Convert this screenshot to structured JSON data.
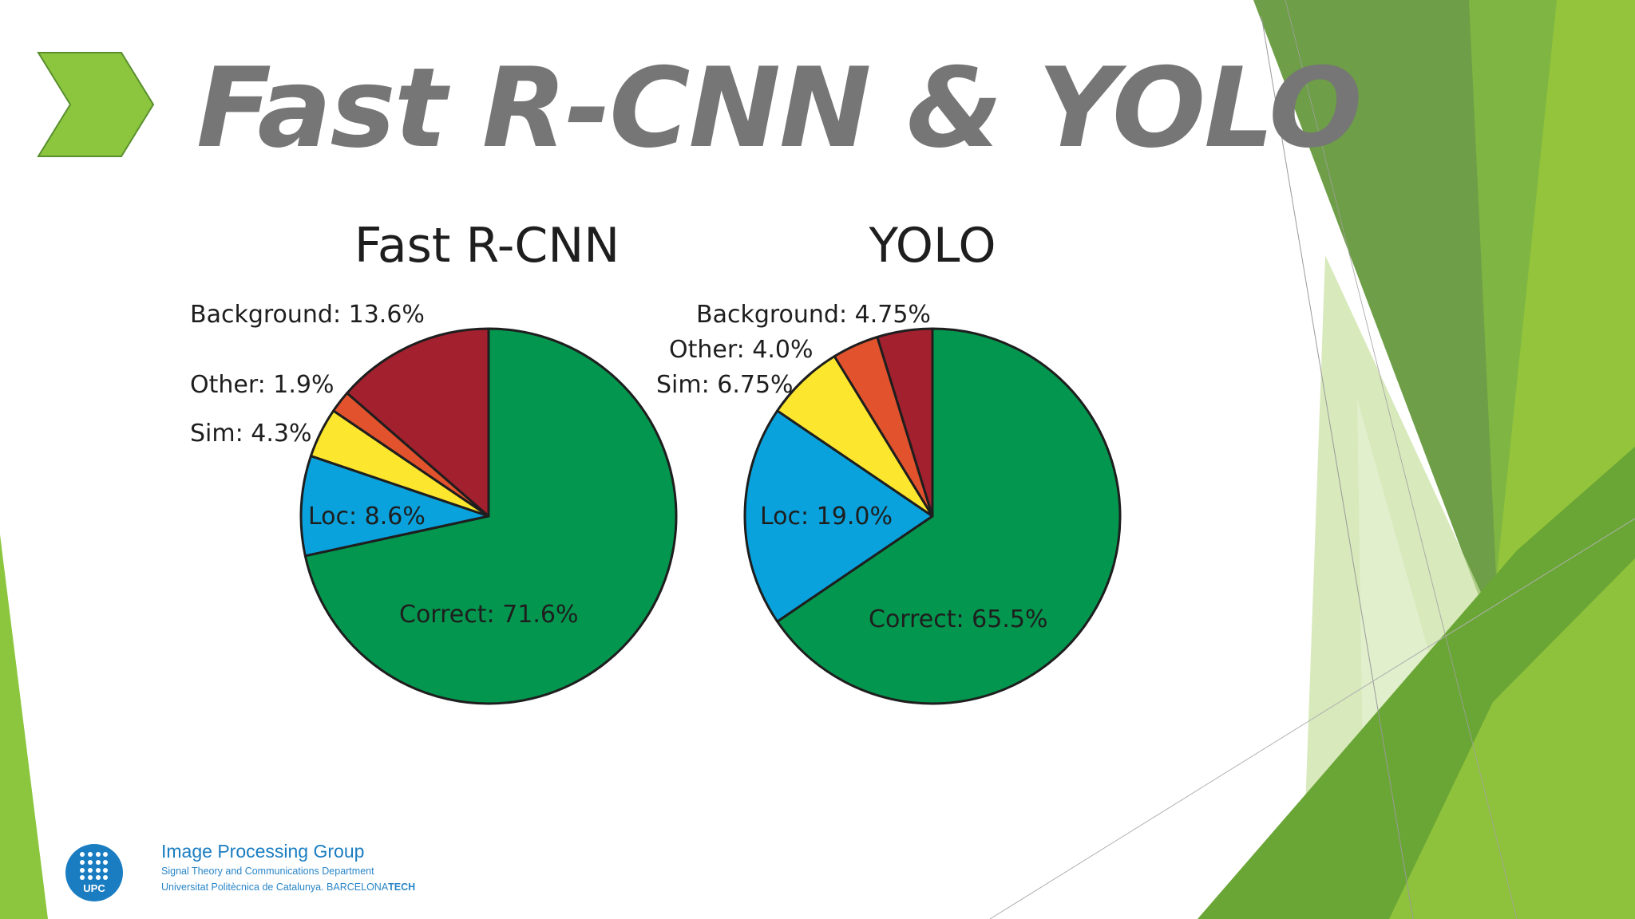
{
  "slide": {
    "title": "Fast R-CNN & YOLO",
    "colors": {
      "accent_green": "#7ab648",
      "bright_green": "#8cc63f",
      "dark_green": "#5a8f2e",
      "title_gray": "#767676"
    }
  },
  "footer": {
    "logo_text": "UPC",
    "group_name": "Image Processing Group",
    "department": "Signal Theory and Communications Department",
    "university": "Universitat Politècnica de Catalunya. BARCELONA",
    "university_suffix": "TECH"
  },
  "chart_data": [
    {
      "type": "pie",
      "title": "Fast R-CNN",
      "slices": [
        {
          "label": "Correct: 71.6%",
          "value": 71.6,
          "color": "#03964e"
        },
        {
          "label": "Loc: 8.6%",
          "value": 8.6,
          "color": "#0aa2dc"
        },
        {
          "label": "Sim: 4.3%",
          "value": 4.3,
          "color": "#fde62e"
        },
        {
          "label": "Other: 1.9%",
          "value": 1.9,
          "color": "#e2532d"
        },
        {
          "label": "Background: 13.6%",
          "value": 13.6,
          "color": "#a3202e"
        }
      ]
    },
    {
      "type": "pie",
      "title": "YOLO",
      "slices": [
        {
          "label": "Correct: 65.5%",
          "value": 65.5,
          "color": "#03964e"
        },
        {
          "label": "Loc: 19.0%",
          "value": 19.0,
          "color": "#0aa2dc"
        },
        {
          "label": "Sim: 6.75%",
          "value": 6.75,
          "color": "#fde62e"
        },
        {
          "label": "Other: 4.0%",
          "value": 4.0,
          "color": "#e2532d"
        },
        {
          "label": "Background: 4.75%",
          "value": 4.75,
          "color": "#a3202e"
        }
      ]
    }
  ]
}
